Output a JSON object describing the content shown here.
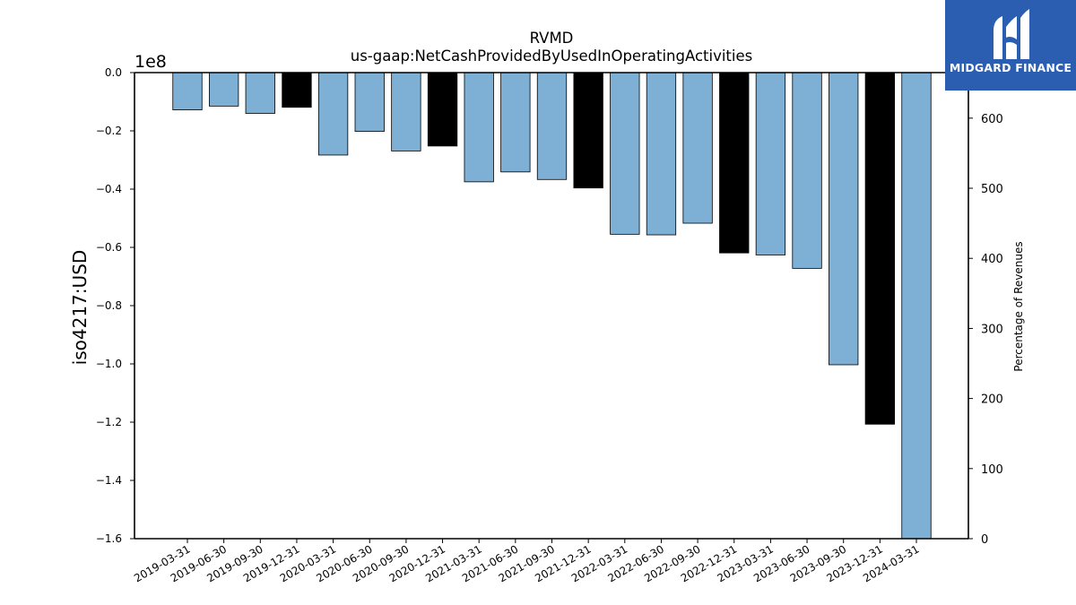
{
  "chart_data": {
    "type": "bar",
    "title": "RVMD",
    "subtitle": "us-gaap:NetCashProvidedByUsedInOperatingActivities",
    "ylabel": "iso4217:USD",
    "y_offset_label": "1e8",
    "y2label": "Percentage of Revenues",
    "ylim": [
      -160000000,
      0
    ],
    "y_ticks": [
      0,
      -20000000,
      -40000000,
      -60000000,
      -80000000,
      -100000000,
      -120000000,
      -140000000,
      -160000000
    ],
    "y_tick_labels": [
      "0.0",
      "−0.2",
      "−0.4",
      "−0.6",
      "−0.8",
      "−1.0",
      "−1.2",
      "−1.4",
      "−1.6"
    ],
    "y2lim": [
      0,
      665
    ],
    "y2_ticks": [
      0,
      100,
      200,
      300,
      400,
      500,
      600
    ],
    "y2_tick_labels": [
      "0",
      "100",
      "200",
      "300",
      "400",
      "500",
      "600"
    ],
    "categories": [
      "2019-03-31",
      "2019-06-30",
      "2019-09-30",
      "2019-12-31",
      "2020-03-31",
      "2020-06-30",
      "2020-09-30",
      "2020-12-31",
      "2021-03-31",
      "2021-06-30",
      "2021-09-30",
      "2021-12-31",
      "2022-03-31",
      "2022-06-30",
      "2022-09-30",
      "2022-12-31",
      "2023-03-31",
      "2023-06-30",
      "2023-09-30",
      "2023-12-31",
      "2024-03-31"
    ],
    "values": [
      -12800000,
      -11500000,
      -14000000,
      -11900000,
      -28300000,
      -20200000,
      -26900000,
      -25200000,
      -37500000,
      -34100000,
      -36700000,
      -39600000,
      -55500000,
      -55700000,
      -51700000,
      -61900000,
      -62600000,
      -67200000,
      -100300000,
      -120700000,
      -160000000
    ],
    "bar_colors": [
      "#7eb0d5",
      "#7eb0d5",
      "#7eb0d5",
      "#000000",
      "#7eb0d5",
      "#7eb0d5",
      "#7eb0d5",
      "#000000",
      "#7eb0d5",
      "#7eb0d5",
      "#7eb0d5",
      "#000000",
      "#7eb0d5",
      "#7eb0d5",
      "#7eb0d5",
      "#000000",
      "#7eb0d5",
      "#7eb0d5",
      "#7eb0d5",
      "#000000",
      "#7eb0d5"
    ],
    "grid": false,
    "legend": "none"
  },
  "logo": {
    "brand": "MIDGARD FINANCE",
    "background": "#2b5db0"
  }
}
